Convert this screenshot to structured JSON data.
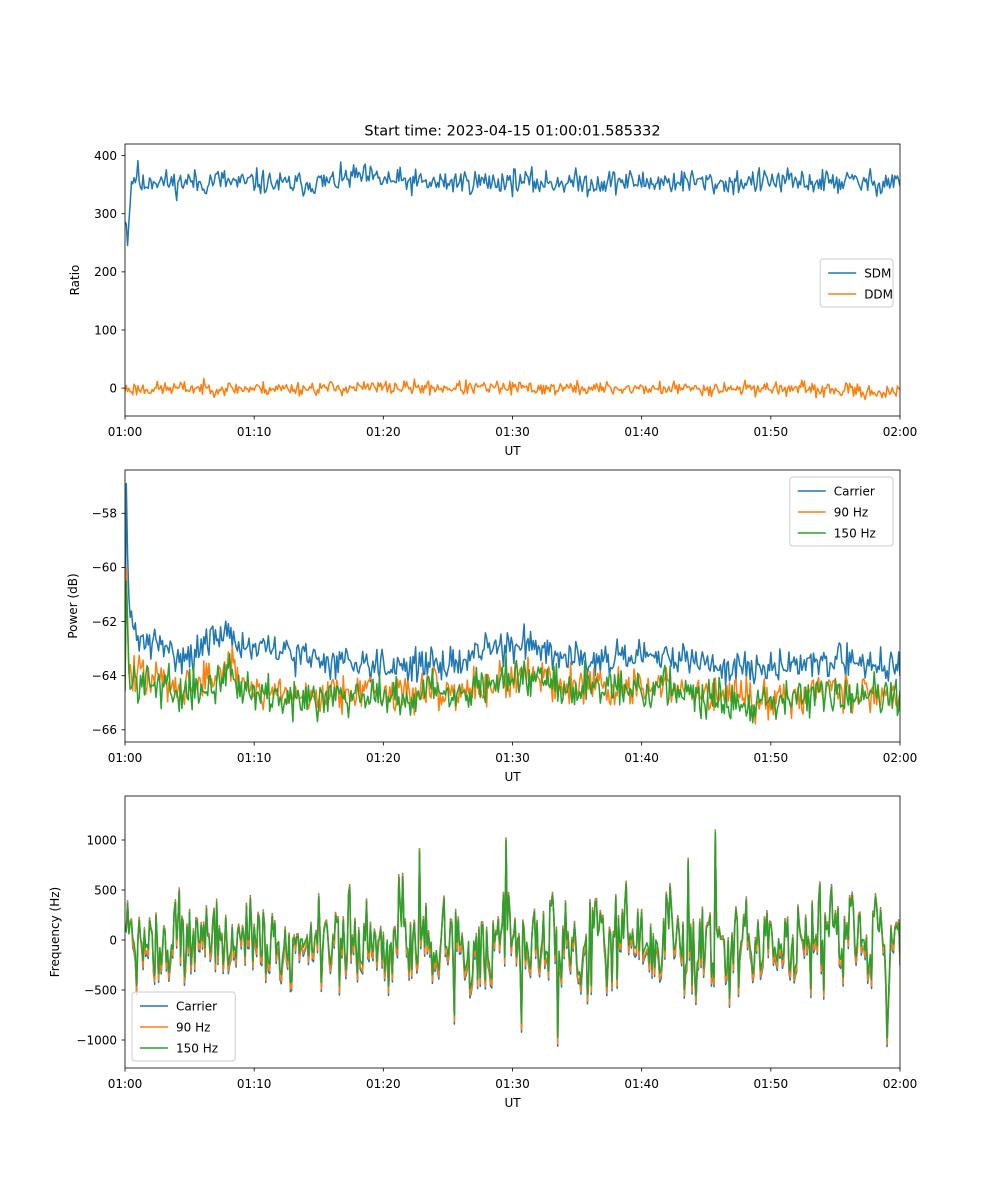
{
  "figure": {
    "title": "Start time: 2023-04-15 01:00:01.585332"
  },
  "chart_data": [
    {
      "id": "ratio",
      "type": "line",
      "xlabel": "UT",
      "ylabel": "Ratio",
      "x_range_minutes": [
        0,
        60
      ],
      "x_ticks": [
        {
          "label": "01:00",
          "minute": 0
        },
        {
          "label": "01:10",
          "minute": 10
        },
        {
          "label": "01:20",
          "minute": 20
        },
        {
          "label": "01:30",
          "minute": 30
        },
        {
          "label": "01:40",
          "minute": 40
        },
        {
          "label": "01:50",
          "minute": 50
        },
        {
          "label": "02:00",
          "minute": 60
        }
      ],
      "ylim": [
        -48,
        420
      ],
      "y_ticks": [
        0,
        100,
        200,
        300,
        400
      ],
      "legend_position": "center-right",
      "series": [
        {
          "name": "SDM",
          "color": "#1f77b4",
          "x_start": 0,
          "x_step": 0.1,
          "anchors_x": [
            0,
            0.2,
            0.5,
            1,
            1.3,
            2,
            3,
            4,
            5,
            6,
            7,
            8,
            9,
            10,
            12,
            14,
            16,
            18,
            20,
            22,
            24,
            26,
            28,
            30,
            32,
            34,
            36,
            38,
            40,
            42,
            44,
            46,
            48,
            50,
            52,
            54,
            56,
            58,
            60
          ],
          "anchors_y": [
            300,
            258,
            355,
            370,
            345,
            360,
            355,
            352,
            357,
            350,
            360,
            355,
            352,
            356,
            350,
            352,
            355,
            365,
            358,
            355,
            352,
            356,
            354,
            357,
            353,
            355,
            352,
            356,
            354,
            355,
            356,
            352,
            355,
            356,
            354,
            355,
            356,
            352,
            360
          ],
          "noise_amplitude": 16,
          "seed": 11
        },
        {
          "name": "DDM",
          "color": "#ff7f0e",
          "x_start": 0,
          "x_step": 0.1,
          "anchors_x": [
            0,
            5,
            10,
            20,
            30,
            40,
            50,
            60
          ],
          "anchors_y": [
            -2,
            0,
            -1,
            1,
            0,
            -1,
            0,
            -8
          ],
          "noise_amplitude": 9,
          "seed": 23
        }
      ]
    },
    {
      "id": "power",
      "type": "line",
      "xlabel": "UT",
      "ylabel": "Power (dB)",
      "x_range_minutes": [
        0,
        60
      ],
      "x_ticks": [
        {
          "label": "01:00",
          "minute": 0
        },
        {
          "label": "01:10",
          "minute": 10
        },
        {
          "label": "01:20",
          "minute": 20
        },
        {
          "label": "01:30",
          "minute": 30
        },
        {
          "label": "01:40",
          "minute": 40
        },
        {
          "label": "01:50",
          "minute": 50
        },
        {
          "label": "02:00",
          "minute": 60
        }
      ],
      "ylim": [
        -66.45,
        -56.4
      ],
      "y_ticks": [
        -66,
        -64,
        -62,
        -60,
        -58
      ],
      "legend_position": "top-right",
      "series": [
        {
          "name": "Carrier",
          "color": "#1f77b4",
          "x_start": 0,
          "x_step": 0.1,
          "anchors_x": [
            0,
            0.1,
            0.3,
            0.6,
            1,
            3,
            5,
            7,
            8,
            9,
            10,
            12,
            14,
            16,
            18,
            20,
            22,
            24,
            26,
            28,
            30,
            32,
            34,
            36,
            38,
            40,
            42,
            44,
            46,
            48,
            50,
            52,
            54,
            56,
            58,
            60
          ],
          "anchors_y": [
            -63,
            -57,
            -61.5,
            -62.3,
            -62.6,
            -63.0,
            -63.3,
            -62.6,
            -62.3,
            -62.9,
            -63.0,
            -63.1,
            -63.3,
            -63.5,
            -63.4,
            -63.6,
            -63.6,
            -63.6,
            -63.5,
            -63.0,
            -62.9,
            -62.8,
            -63.3,
            -63.3,
            -63.4,
            -63.4,
            -63.3,
            -63.4,
            -63.7,
            -63.7,
            -63.7,
            -63.6,
            -63.4,
            -63.5,
            -63.5,
            -63.7
          ],
          "noise_amplitude": 0.45,
          "seed": 31
        },
        {
          "name": "90 Hz",
          "color": "#ff7f0e",
          "x_start": 0,
          "x_step": 0.1,
          "anchors_x": [
            0,
            0.1,
            0.3,
            0.6,
            1,
            3,
            5,
            7,
            8,
            9,
            10,
            12,
            14,
            16,
            18,
            20,
            22,
            24,
            26,
            28,
            30,
            32,
            34,
            36,
            38,
            40,
            42,
            44,
            46,
            48,
            50,
            52,
            54,
            56,
            58,
            60
          ],
          "anchors_y": [
            -64,
            -60.3,
            -63.8,
            -64.0,
            -64.0,
            -64.2,
            -64.4,
            -64.0,
            -63.6,
            -64.3,
            -64.5,
            -64.6,
            -64.8,
            -64.7,
            -64.4,
            -64.7,
            -64.6,
            -64.5,
            -64.6,
            -64.3,
            -64.1,
            -63.9,
            -64.3,
            -64.3,
            -64.5,
            -64.5,
            -64.4,
            -64.6,
            -64.8,
            -64.9,
            -64.8,
            -64.7,
            -64.5,
            -64.6,
            -64.6,
            -64.7
          ],
          "noise_amplitude": 0.55,
          "seed": 47
        },
        {
          "name": "150 Hz",
          "color": "#2ca02c",
          "x_start": 0,
          "x_step": 0.1,
          "anchors_x": [
            0,
            0.1,
            0.3,
            0.6,
            1,
            3,
            5,
            7,
            8,
            9,
            10,
            12,
            14,
            16,
            18,
            20,
            22,
            24,
            26,
            28,
            30,
            32,
            34,
            36,
            38,
            40,
            42,
            44,
            46,
            48,
            50,
            52,
            54,
            56,
            58,
            60
          ],
          "anchors_y": [
            -64.3,
            -61.1,
            -63.9,
            -64.1,
            -64.2,
            -64.3,
            -64.7,
            -64.2,
            -63.8,
            -64.4,
            -64.6,
            -64.7,
            -64.9,
            -64.7,
            -64.5,
            -64.8,
            -64.8,
            -64.6,
            -64.5,
            -64.3,
            -64.1,
            -64.0,
            -64.4,
            -64.4,
            -64.5,
            -64.5,
            -64.4,
            -64.7,
            -64.9,
            -65.0,
            -64.9,
            -64.8,
            -64.6,
            -64.7,
            -64.7,
            -64.8
          ],
          "noise_amplitude": 0.55,
          "seed": 59
        }
      ]
    },
    {
      "id": "frequency",
      "type": "line",
      "xlabel": "UT",
      "ylabel": "Frequency (Hz)",
      "x_range_minutes": [
        0,
        60
      ],
      "x_ticks": [
        {
          "label": "01:00",
          "minute": 0
        },
        {
          "label": "01:10",
          "minute": 10
        },
        {
          "label": "01:20",
          "minute": 20
        },
        {
          "label": "01:30",
          "minute": 30
        },
        {
          "label": "01:40",
          "minute": 40
        },
        {
          "label": "01:50",
          "minute": 50
        },
        {
          "label": "02:00",
          "minute": 60
        }
      ],
      "ylim": [
        -1280,
        1440
      ],
      "y_ticks": [
        -1000,
        -500,
        0,
        500,
        1000
      ],
      "legend_position": "bottom-left",
      "series": [
        {
          "name": "Carrier",
          "color": "#1f77b4",
          "offset": -70,
          "scale": 1.0
        },
        {
          "name": "90 Hz",
          "color": "#ff7f0e",
          "offset": -45,
          "scale": 1.0
        },
        {
          "name": "150 Hz",
          "color": "#2ca02c",
          "offset": 20,
          "scale": 1.0
        }
      ],
      "shared_trace": {
        "x_start": 0,
        "x_step": 0.1,
        "mean": 0,
        "noise_amplitude": 380,
        "seed": 73
      }
    }
  ]
}
